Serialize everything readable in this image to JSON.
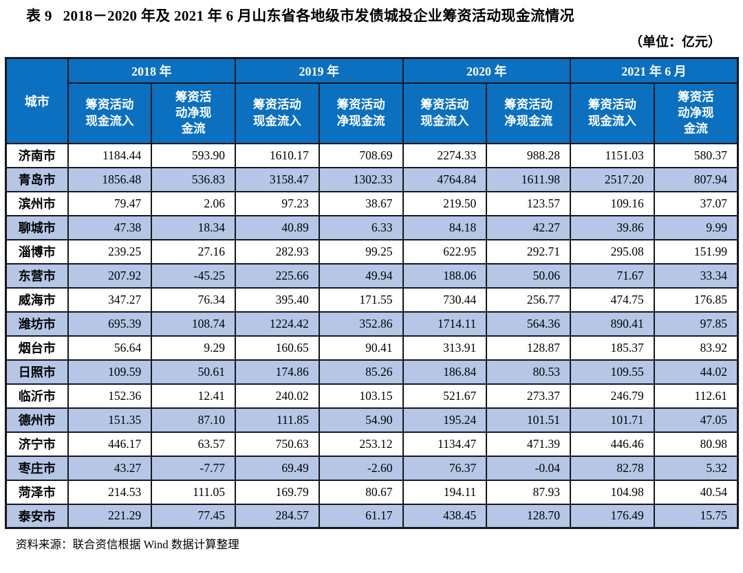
{
  "colors": {
    "header_bg": "#0b70c0",
    "stripe": "#b5c6e7",
    "border": "#14181c",
    "text": "#000000",
    "header_text": "#ffffff"
  },
  "title": {
    "label": "表 9",
    "text": "2018－2020 年及 2021 年 6 月山东省各地级市发债城投企业筹资活动现金流情况",
    "unit": "（单位：亿元）"
  },
  "table": {
    "corner": "城市",
    "groups": [
      {
        "year": "2018 年",
        "inflow_lines": [
          "筹资活动",
          "现金流入"
        ],
        "net_lines": [
          "筹资活",
          "动净现",
          "金流"
        ]
      },
      {
        "year": "2019 年",
        "inflow_lines": [
          "筹资活动",
          "现金流入"
        ],
        "net_lines": [
          "筹资活动",
          "净现金流"
        ]
      },
      {
        "year": "2020 年",
        "inflow_lines": [
          "筹资活动",
          "现金流入"
        ],
        "net_lines": [
          "筹资活动",
          "净现金流"
        ]
      },
      {
        "year": "2021 年 6 月",
        "inflow_lines": [
          "筹资活动",
          "现金流入"
        ],
        "net_lines": [
          "筹资活",
          "动净现",
          "金流"
        ]
      }
    ],
    "rows": [
      {
        "city": "济南市",
        "values": [
          "1184.44",
          "593.90",
          "1610.17",
          "708.69",
          "2274.33",
          "988.28",
          "1151.03",
          "580.37"
        ]
      },
      {
        "city": "青岛市",
        "values": [
          "1856.48",
          "536.83",
          "3158.47",
          "1302.33",
          "4764.84",
          "1611.98",
          "2517.20",
          "807.94"
        ]
      },
      {
        "city": "滨州市",
        "values": [
          "79.47",
          "2.06",
          "97.23",
          "38.67",
          "219.50",
          "123.57",
          "109.16",
          "37.07"
        ]
      },
      {
        "city": "聊城市",
        "values": [
          "47.38",
          "18.34",
          "40.89",
          "6.33",
          "84.18",
          "42.27",
          "39.86",
          "9.99"
        ]
      },
      {
        "city": "淄博市",
        "values": [
          "239.25",
          "27.16",
          "282.93",
          "99.25",
          "622.95",
          "292.71",
          "295.08",
          "151.99"
        ]
      },
      {
        "city": "东营市",
        "values": [
          "207.92",
          "-45.25",
          "225.66",
          "49.94",
          "188.06",
          "50.06",
          "71.67",
          "33.34"
        ]
      },
      {
        "city": "威海市",
        "values": [
          "347.27",
          "76.34",
          "395.40",
          "171.55",
          "730.44",
          "256.77",
          "474.75",
          "176.85"
        ]
      },
      {
        "city": "潍坊市",
        "values": [
          "695.39",
          "108.74",
          "1224.42",
          "352.86",
          "1714.11",
          "564.36",
          "890.41",
          "97.85"
        ]
      },
      {
        "city": "烟台市",
        "values": [
          "56.64",
          "9.29",
          "160.65",
          "90.41",
          "313.91",
          "128.87",
          "185.37",
          "83.92"
        ]
      },
      {
        "city": "日照市",
        "values": [
          "109.59",
          "50.61",
          "174.86",
          "85.26",
          "186.84",
          "80.53",
          "109.55",
          "44.02"
        ]
      },
      {
        "city": "临沂市",
        "values": [
          "152.36",
          "12.41",
          "240.02",
          "103.15",
          "521.67",
          "273.37",
          "246.79",
          "112.61"
        ]
      },
      {
        "city": "德州市",
        "values": [
          "151.35",
          "87.10",
          "111.85",
          "54.90",
          "195.24",
          "101.51",
          "101.71",
          "47.05"
        ]
      },
      {
        "city": "济宁市",
        "values": [
          "446.17",
          "63.57",
          "750.63",
          "253.12",
          "1134.47",
          "471.39",
          "446.46",
          "80.98"
        ]
      },
      {
        "city": "枣庄市",
        "values": [
          "43.27",
          "-7.77",
          "69.49",
          "-2.60",
          "76.37",
          "-0.04",
          "82.78",
          "5.32"
        ]
      },
      {
        "city": "菏泽市",
        "values": [
          "214.53",
          "111.05",
          "169.79",
          "80.67",
          "194.11",
          "87.93",
          "104.98",
          "40.54"
        ]
      },
      {
        "city": "泰安市",
        "values": [
          "221.29",
          "77.45",
          "284.57",
          "61.17",
          "438.45",
          "128.70",
          "176.49",
          "15.75"
        ]
      }
    ]
  },
  "footer": {
    "source": "资料来源：联合资信根据 Wind 数据计算整理"
  }
}
